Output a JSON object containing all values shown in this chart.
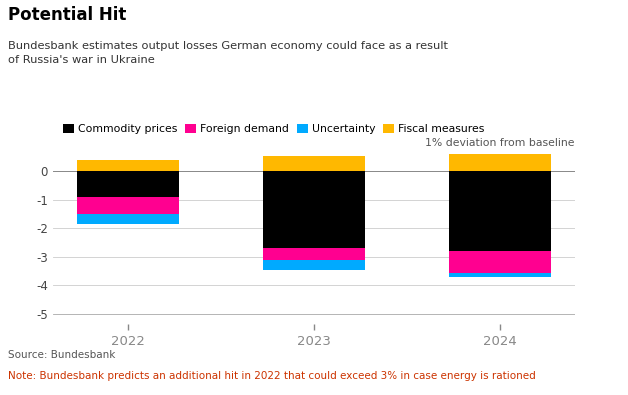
{
  "title": "Potential Hit",
  "subtitle": "Bundesbank estimates output losses German economy could face as a result\nof Russia's war in Ukraine",
  "note_source": "Source: Bundesbank",
  "note_text": "Note: Bundesbank predicts an additional hit in 2022 that could exceed 3% in case energy is rationed",
  "axis_label": "1% deviation from baseline",
  "years": [
    "2022",
    "2023",
    "2024"
  ],
  "commodity_prices": [
    -0.9,
    -2.7,
    -2.8
  ],
  "foreign_demand": [
    -0.6,
    -0.4,
    -0.75
  ],
  "uncertainty": [
    -0.35,
    -0.35,
    -0.15
  ],
  "fiscal_measures": [
    0.42,
    0.55,
    0.6
  ],
  "colors": {
    "commodity_prices": "#000000",
    "foreign_demand": "#FF0090",
    "uncertainty": "#00AAFF",
    "fiscal_measures": "#FFB800"
  },
  "ylim": [
    -5.35,
    0.75
  ],
  "yticks": [
    0,
    -1,
    -2,
    -3,
    -4,
    -5
  ],
  "bg_color": "#ffffff",
  "title_color": "#000000",
  "subtitle_color": "#333333",
  "note_color": "#555555",
  "note_text_color": "#CC3300"
}
